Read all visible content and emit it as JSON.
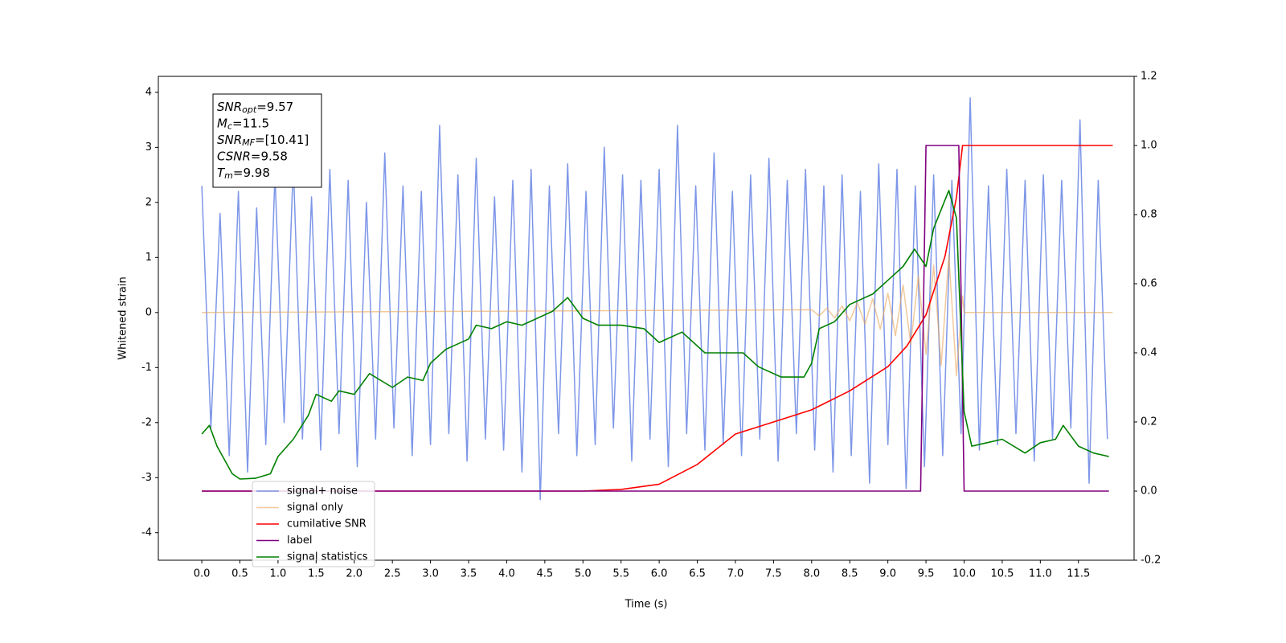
{
  "chart_data": {
    "type": "line",
    "xlabel": "Time (s)",
    "ylabel": "Whitened strain",
    "xlim": [
      -0.57,
      12.23
    ],
    "ylim": [
      -4.5,
      4.29
    ],
    "y2lim": [
      -0.2,
      1.2
    ],
    "xticks": [
      {
        "value": 0,
        "label": "0.0"
      },
      0.5,
      {
        "value": 1,
        "label": "1.0"
      },
      1.5,
      {
        "value": 2,
        "label": "2.0"
      },
      2.5,
      {
        "value": 3,
        "label": "3.0"
      },
      3.5,
      {
        "value": 4,
        "label": "4.0"
      },
      4.5,
      {
        "value": 5,
        "label": "5.0"
      },
      5.5,
      {
        "value": 6,
        "label": "6.0"
      },
      6.5,
      {
        "value": 7,
        "label": "7.0"
      },
      7.5,
      {
        "value": 8,
        "label": "8.0"
      },
      8.5,
      {
        "value": 9,
        "label": "9.0"
      },
      9.5,
      {
        "value": 10,
        "label": "10.0"
      },
      10.5,
      {
        "value": 11,
        "label": "11.0"
      },
      11.5
    ],
    "yticks": [
      -4,
      -3,
      -2,
      -1,
      0,
      1,
      2,
      3,
      4
    ],
    "y2ticks": [
      -0.2,
      {
        "value": 0,
        "label": "0.0"
      },
      0.2,
      0.4,
      0.6,
      0.8,
      {
        "value": 1,
        "label": "1.0"
      },
      1.2
    ],
    "annotation_box": [
      {
        "main": "SNR",
        "sub": "opt",
        "rest": "=9.57"
      },
      {
        "main": "M",
        "sub": "c",
        "rest": "=11.5"
      },
      {
        "main": "SNR",
        "sub": "MF",
        "rest": "=[10.41]"
      },
      {
        "main": "CSNR",
        "rest": "=9.58"
      },
      {
        "main": "T",
        "sub": "m",
        "rest": "=9.98"
      }
    ],
    "series": [
      {
        "name": "signal+ noise",
        "color": "#6f8be6",
        "x": [
          0,
          0.12,
          0.24,
          0.36,
          0.48,
          0.6,
          0.72,
          0.84,
          0.96,
          1.08,
          1.2,
          1.32,
          1.44,
          1.56,
          1.68,
          1.8,
          1.92,
          2.04,
          2.16,
          2.28,
          2.4,
          2.52,
          2.64,
          2.76,
          2.88,
          3,
          3.12,
          3.24,
          3.36,
          3.48,
          3.6,
          3.72,
          3.84,
          3.96,
          4.08,
          4.2,
          4.32,
          4.44,
          4.56,
          4.68,
          4.8,
          4.92,
          5.04,
          5.16,
          5.28,
          5.4,
          5.52,
          5.64,
          5.76,
          5.88,
          6,
          6.12,
          6.24,
          6.36,
          6.48,
          6.6,
          6.72,
          6.84,
          6.96,
          7.08,
          7.2,
          7.32,
          7.44,
          7.56,
          7.68,
          7.8,
          7.92,
          8.04,
          8.16,
          8.28,
          8.4,
          8.52,
          8.64,
          8.76,
          8.88,
          9,
          9.12,
          9.24,
          9.36,
          9.48,
          9.6,
          9.72,
          9.84,
          9.96,
          10.08,
          10.2,
          10.32,
          10.44,
          10.56,
          10.68,
          10.8,
          10.92,
          11.04,
          11.16,
          11.28,
          11.4,
          11.52,
          11.64,
          11.76,
          11.88
        ],
        "values": [
          2.3,
          -2.1,
          1.8,
          -2.6,
          2.2,
          -2.9,
          1.9,
          -2.4,
          2.5,
          -2.0,
          2.7,
          -2.3,
          2.1,
          -2.5,
          2.6,
          -2.2,
          2.4,
          -2.8,
          2.0,
          -2.3,
          2.9,
          -2.1,
          2.3,
          -2.6,
          2.2,
          -2.4,
          3.4,
          -2.2,
          2.5,
          -2.7,
          2.8,
          -2.3,
          2.1,
          -2.5,
          2.4,
          -2.9,
          2.6,
          -3.4,
          2.3,
          -2.2,
          2.7,
          -2.6,
          2.2,
          -2.4,
          3.0,
          -2.1,
          2.5,
          -2.7,
          2.4,
          -2.3,
          2.6,
          -2.8,
          3.4,
          -2.2,
          2.3,
          -2.5,
          2.9,
          -2.4,
          2.2,
          -2.6,
          2.5,
          -2.3,
          2.8,
          -2.7,
          2.4,
          -2.2,
          2.6,
          -2.5,
          2.3,
          -2.9,
          2.5,
          -2.6,
          2.2,
          -3.1,
          2.7,
          -2.4,
          2.6,
          -3.2,
          2.3,
          -2.8,
          2.5,
          -2.6,
          2.4,
          -2.2,
          3.9,
          -2.5,
          2.3,
          -2.4,
          2.6,
          -2.2,
          2.4,
          -2.7,
          2.5,
          -2.3,
          2.4,
          -2.1,
          3.5,
          -3.1,
          2.4,
          -2.3
        ]
      },
      {
        "name": "signal only",
        "color": "#e8a55a",
        "x": [
          0,
          8.0,
          8.1,
          8.2,
          8.3,
          8.4,
          8.5,
          8.6,
          8.7,
          8.8,
          8.9,
          9.0,
          9.1,
          9.2,
          9.3,
          9.4,
          9.5,
          9.6,
          9.7,
          9.8,
          9.9,
          9.98,
          10.0,
          11.95
        ],
        "values": [
          0,
          0.05,
          -0.06,
          0.08,
          -0.1,
          0.12,
          -0.15,
          0.18,
          -0.21,
          0.25,
          -0.3,
          0.35,
          -0.42,
          0.5,
          -0.58,
          0.66,
          -0.76,
          0.86,
          -0.96,
          1.05,
          -1.15,
          0.3,
          0,
          0
        ]
      },
      {
        "name": "cumilative SNR",
        "color": "#ff0000",
        "axis": "y2",
        "x": [
          0,
          5,
          5.5,
          6,
          6.5,
          7,
          7.5,
          8,
          8.5,
          9,
          9.25,
          9.5,
          9.75,
          9.9,
          9.98,
          11.95
        ],
        "values": [
          0,
          0,
          0.005,
          0.02,
          0.077,
          0.165,
          0.2,
          0.235,
          0.29,
          0.36,
          0.42,
          0.51,
          0.68,
          0.85,
          1.0,
          1.0
        ]
      },
      {
        "name": "label",
        "color": "#800080",
        "axis": "y2",
        "x": [
          0,
          9.43,
          9.5,
          9.93,
          10.0,
          11.9
        ],
        "values": [
          0,
          0,
          1,
          1,
          0,
          0
        ]
      },
      {
        "name": "signal statistics",
        "color": "#008000",
        "axis": "y2",
        "x": [
          0,
          0.1,
          0.2,
          0.4,
          0.5,
          0.7,
          0.9,
          1.0,
          1.2,
          1.4,
          1.5,
          1.7,
          1.8,
          2.0,
          2.2,
          2.5,
          2.7,
          2.9,
          3.0,
          3.2,
          3.5,
          3.6,
          3.8,
          4.0,
          4.2,
          4.4,
          4.6,
          4.8,
          5.0,
          5.2,
          5.5,
          5.8,
          6.0,
          6.3,
          6.6,
          6.9,
          7.1,
          7.3,
          7.6,
          7.9,
          8.0,
          8.1,
          8.3,
          8.5,
          8.8,
          9.0,
          9.2,
          9.35,
          9.5,
          9.6,
          9.8,
          9.9,
          10.0,
          10.1,
          10.3,
          10.5,
          10.8,
          11.0,
          11.2,
          11.3,
          11.5,
          11.7,
          11.9
        ],
        "values": [
          0.165,
          0.19,
          0.13,
          0.05,
          0.035,
          0.037,
          0.05,
          0.1,
          0.15,
          0.22,
          0.28,
          0.26,
          0.29,
          0.28,
          0.34,
          0.3,
          0.33,
          0.32,
          0.37,
          0.41,
          0.44,
          0.48,
          0.47,
          0.49,
          0.48,
          0.5,
          0.52,
          0.56,
          0.5,
          0.48,
          0.48,
          0.47,
          0.43,
          0.46,
          0.4,
          0.4,
          0.4,
          0.36,
          0.33,
          0.33,
          0.37,
          0.47,
          0.49,
          0.54,
          0.57,
          0.61,
          0.65,
          0.7,
          0.65,
          0.76,
          0.87,
          0.79,
          0.23,
          0.13,
          0.14,
          0.15,
          0.11,
          0.14,
          0.15,
          0.19,
          0.13,
          0.11,
          0.1
        ]
      }
    ]
  }
}
